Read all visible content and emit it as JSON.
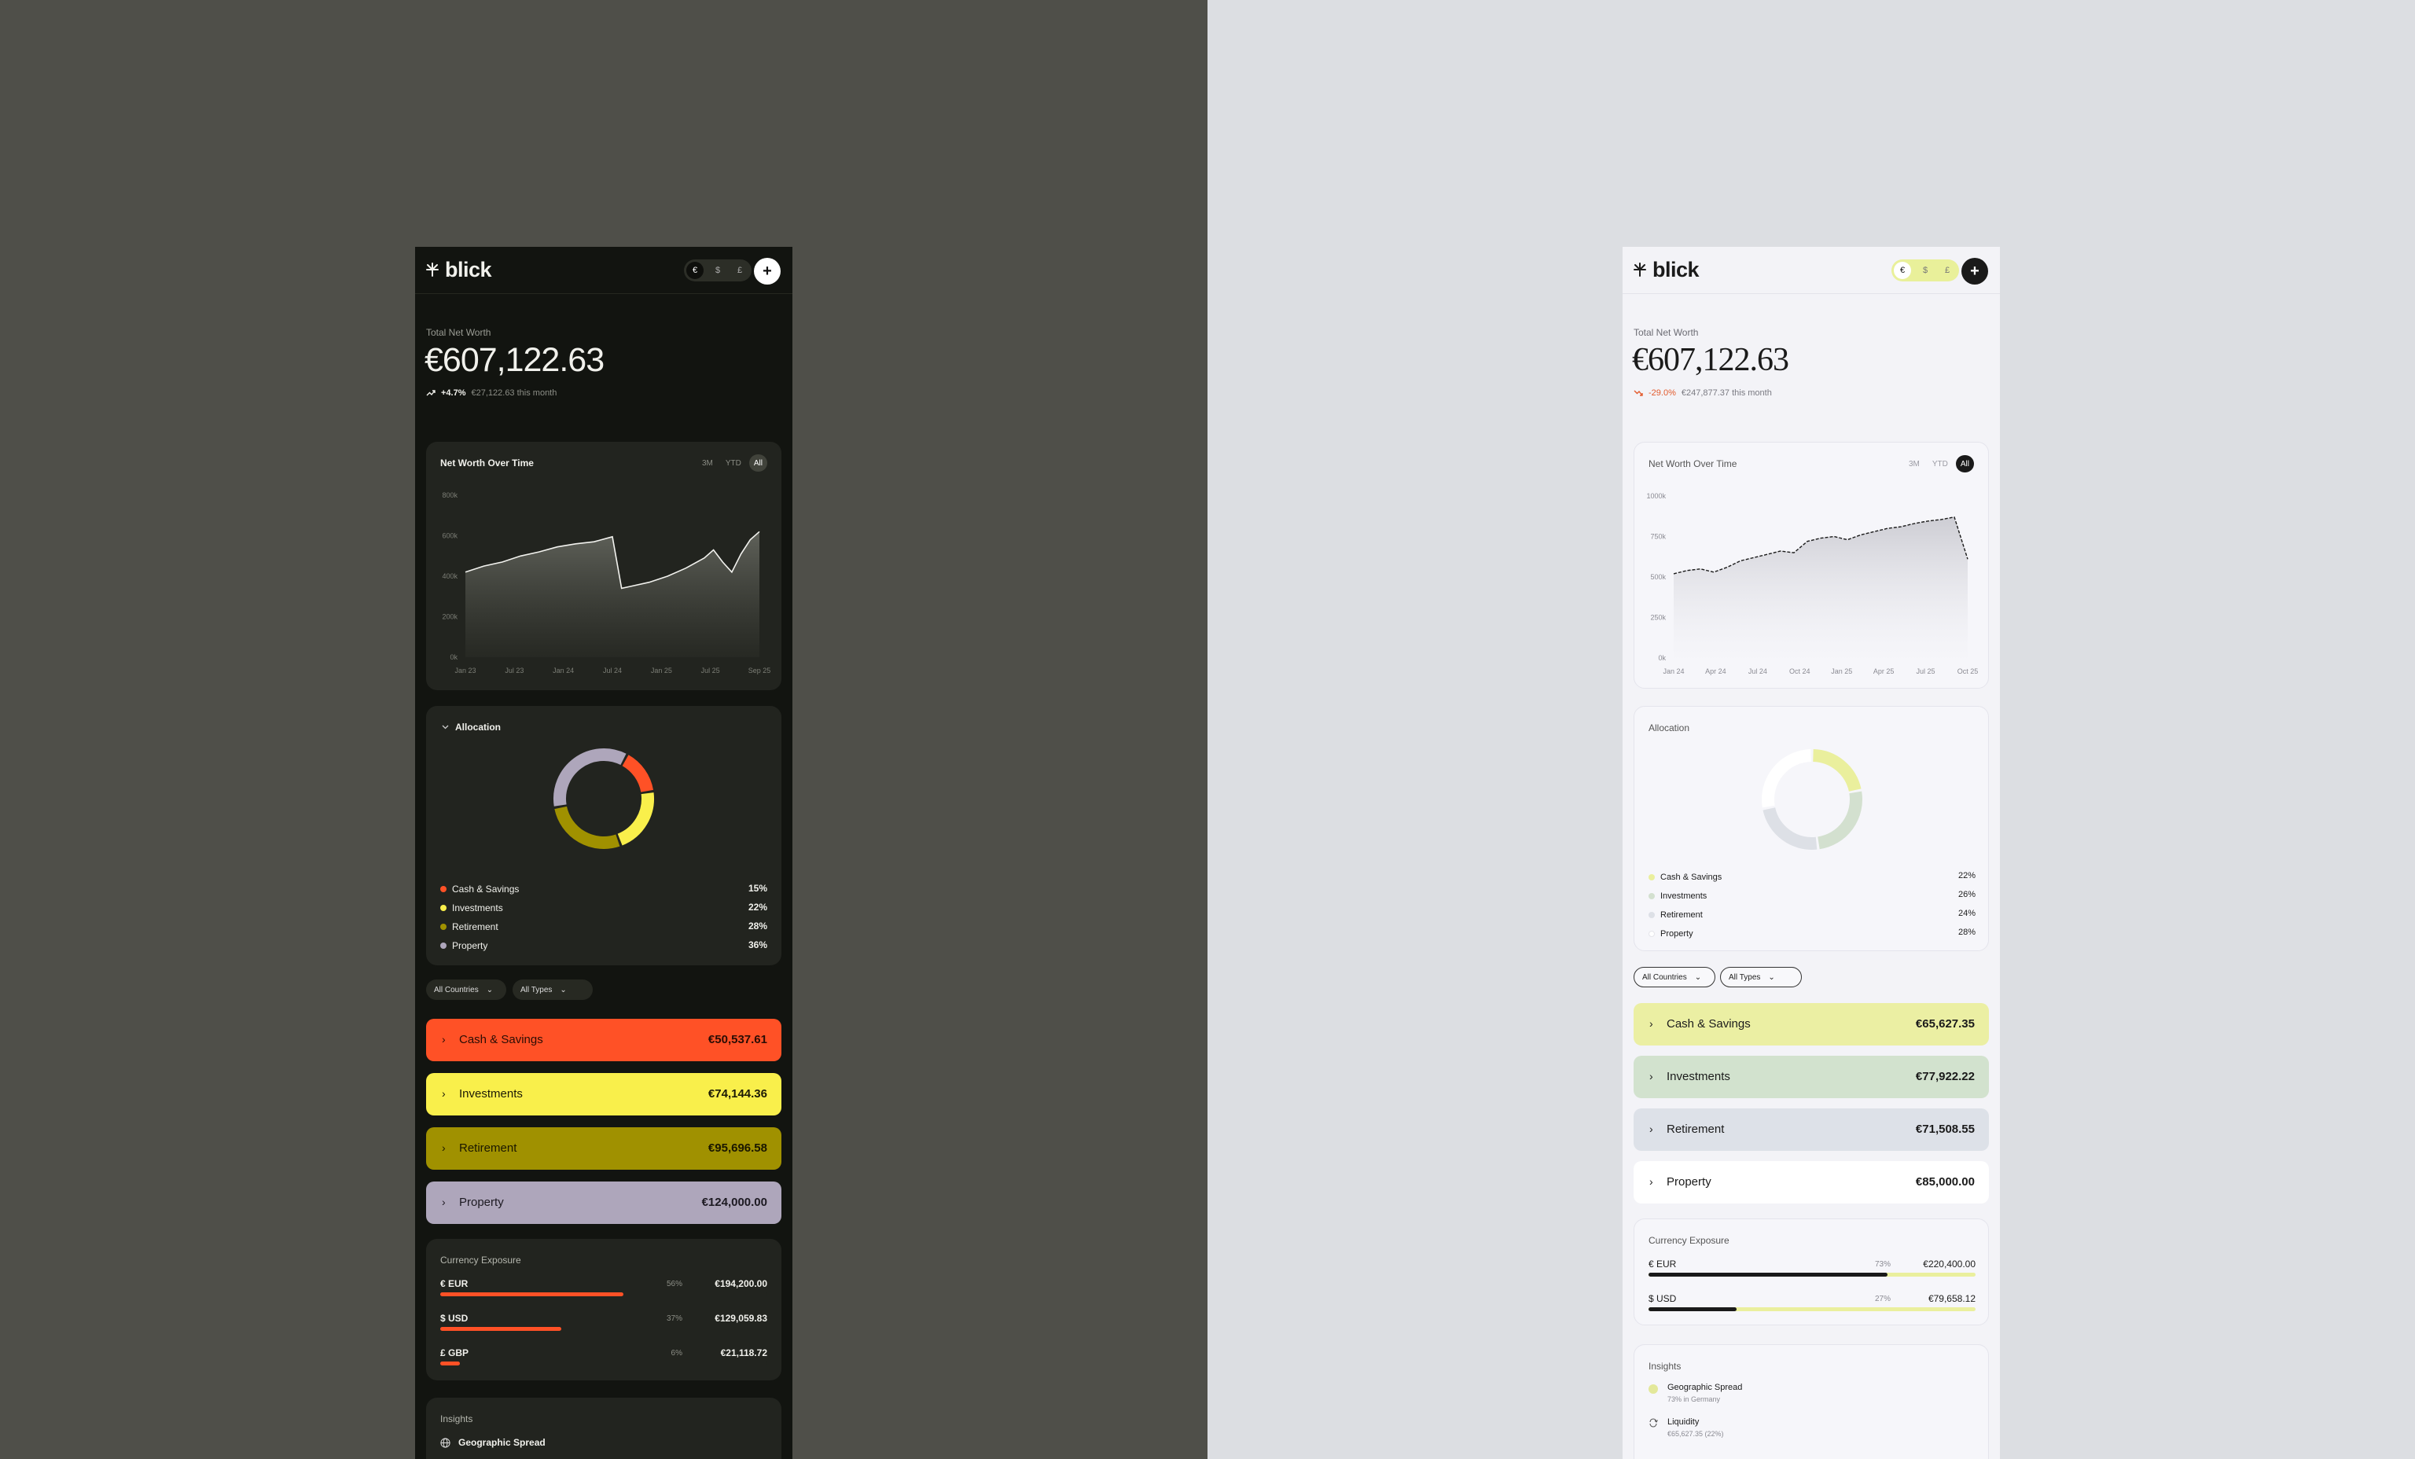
{
  "dark": {
    "logo": "blick",
    "currency_options": [
      "€",
      "$",
      "£"
    ],
    "add_label": "+",
    "total_label": "Total Net Worth",
    "total_value": "€607,122.63",
    "change_pct": "+4.7%",
    "change_text": "€27,122.63 this month",
    "chart_title": "Net Worth Over Time",
    "ranges": [
      "3M",
      "YTD",
      "All"
    ],
    "allocation_title": "Allocation",
    "allocation": [
      {
        "label": "Cash & Savings",
        "pct": "15%",
        "value": 15,
        "color": "#ff5126"
      },
      {
        "label": "Investments",
        "pct": "22%",
        "value": 22,
        "color": "#f9ef4b"
      },
      {
        "label": "Retirement",
        "pct": "28%",
        "value": 28,
        "color": "#a09100"
      },
      {
        "label": "Property",
        "pct": "36%",
        "value": 36,
        "color": "#aea6bb"
      }
    ],
    "filters": [
      "All Countries",
      "All Types"
    ],
    "categories": [
      {
        "label": "Cash & Savings",
        "value": "€50,537.61",
        "color": "#ff5126"
      },
      {
        "label": "Investments",
        "value": "€74,144.36",
        "color": "#f9ef4b"
      },
      {
        "label": "Retirement",
        "value": "€95,696.58",
        "color": "#a09100"
      },
      {
        "label": "Property",
        "value": "€124,000.00",
        "color": "#aea6bb"
      }
    ],
    "exposure_title": "Currency Exposure",
    "exposure": [
      {
        "name": "€ EUR",
        "pct": "56%",
        "amount": "€194,200.00",
        "fraction": 0.56
      },
      {
        "name": "$ USD",
        "pct": "37%",
        "amount": "€129,059.83",
        "fraction": 0.37
      },
      {
        "name": "£ GBP",
        "pct": "6%",
        "amount": "€21,118.72",
        "fraction": 0.06
      }
    ],
    "insights_title": "Insights",
    "insights": [
      {
        "title": "Geographic Spread",
        "icon": "globe-icon"
      }
    ]
  },
  "light": {
    "logo": "blick",
    "currency_options": [
      "€",
      "$",
      "£"
    ],
    "add_label": "+",
    "total_label": "Total Net Worth",
    "total_value": "€607,122.63",
    "change_pct": "-29.0%",
    "change_text": "€247,877.37 this month",
    "chart_title": "Net Worth Over Time",
    "ranges": [
      "3M",
      "YTD",
      "All"
    ],
    "allocation_title": "Allocation",
    "allocation": [
      {
        "label": "Cash & Savings",
        "pct": "22%",
        "value": 22,
        "color": "#eaef9d"
      },
      {
        "label": "Investments",
        "pct": "26%",
        "value": 26,
        "color": "#d3e0cf"
      },
      {
        "label": "Retirement",
        "pct": "24%",
        "value": 24,
        "color": "#dde0e6"
      },
      {
        "label": "Property",
        "pct": "28%",
        "value": 28,
        "color": "#ffffff"
      }
    ],
    "filters": [
      "All Countries",
      "All Types"
    ],
    "categories": [
      {
        "label": "Cash & Savings",
        "value": "€65,627.35",
        "color": "#ebefa3"
      },
      {
        "label": "Investments",
        "value": "€77,922.22",
        "color": "#d2e2ce"
      },
      {
        "label": "Retirement",
        "value": "€71,508.55",
        "color": "#dde1e8"
      },
      {
        "label": "Property",
        "value": "€85,000.00",
        "color": "#ffffff"
      }
    ],
    "exposure_title": "Currency Exposure",
    "exposure": [
      {
        "name": "€ EUR",
        "pct": "73%",
        "amount": "€220,400.00",
        "fraction": 0.73
      },
      {
        "name": "$ USD",
        "pct": "27%",
        "amount": "€79,658.12",
        "fraction": 0.27
      }
    ],
    "insights_title": "Insights",
    "insights": [
      {
        "title": "Geographic Spread",
        "sub": "73% in Germany",
        "icon": "dot-icon"
      },
      {
        "title": "Liquidity",
        "sub": "€65,627.35 (22%)",
        "icon": "refresh-icon"
      }
    ]
  },
  "chart_data": [
    {
      "type": "area",
      "title": "Net Worth Over Time",
      "y_ticks": [
        "800k",
        "600k",
        "400k",
        "200k",
        "0k"
      ],
      "ylim": [
        0,
        800000
      ],
      "x_ticks": [
        "Jan 23",
        "Jul 23",
        "Jan 24",
        "Jul 24",
        "Jan 25",
        "Jul 25",
        "Sep 25"
      ],
      "x": [
        "2023-01",
        "2023-03",
        "2023-05",
        "2023-07",
        "2023-09",
        "2023-11",
        "2024-01",
        "2024-03",
        "2024-05",
        "2024-06",
        "2024-07",
        "2024-09",
        "2024-11",
        "2025-01",
        "2025-03",
        "2025-04",
        "2025-05",
        "2025-06",
        "2025-07",
        "2025-08",
        "2025-09"
      ],
      "values": [
        420000,
        450000,
        470000,
        500000,
        520000,
        545000,
        560000,
        570000,
        595000,
        340000,
        350000,
        370000,
        400000,
        440000,
        490000,
        530000,
        470000,
        420000,
        510000,
        580000,
        620000
      ]
    },
    {
      "type": "area",
      "title": "Net Worth Over Time",
      "y_ticks": [
        "1000k",
        "750k",
        "500k",
        "250k",
        "0k"
      ],
      "ylim": [
        0,
        1000000
      ],
      "x_ticks": [
        "Jan 24",
        "Apr 24",
        "Jul 24",
        "Oct 24",
        "Jan 25",
        "Apr 25",
        "Jul 25",
        "Oct 25"
      ],
      "x": [
        "2024-01",
        "2024-02",
        "2024-03",
        "2024-04",
        "2024-05",
        "2024-06",
        "2024-07",
        "2024-08",
        "2024-09",
        "2024-10",
        "2024-11",
        "2024-12",
        "2025-01",
        "2025-02",
        "2025-03",
        "2025-04",
        "2025-05",
        "2025-06",
        "2025-07",
        "2025-08",
        "2025-09",
        "2025-10",
        "2025-11"
      ],
      "values": [
        520000,
        540000,
        550000,
        530000,
        560000,
        600000,
        620000,
        640000,
        660000,
        650000,
        720000,
        740000,
        750000,
        730000,
        760000,
        780000,
        800000,
        810000,
        830000,
        845000,
        855000,
        870000,
        610000
      ]
    }
  ]
}
